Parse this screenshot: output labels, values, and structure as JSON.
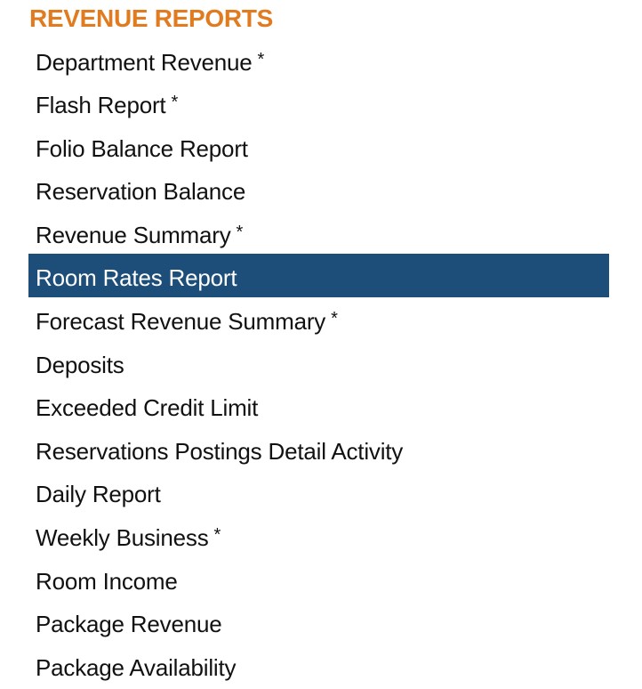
{
  "section": {
    "title": "REVENUE REPORTS",
    "title_color": "#E07B20",
    "highlight_color": "#1D4E79",
    "selected_index": 5,
    "items": [
      {
        "label": "Department Revenue",
        "marker": "*"
      },
      {
        "label": "Flash Report",
        "marker": "*"
      },
      {
        "label": "Folio Balance Report",
        "marker": ""
      },
      {
        "label": "Reservation Balance",
        "marker": ""
      },
      {
        "label": "Revenue Summary",
        "marker": "*"
      },
      {
        "label": "Room Rates Report",
        "marker": ""
      },
      {
        "label": "Forecast Revenue Summary",
        "marker": "*"
      },
      {
        "label": "Deposits",
        "marker": ""
      },
      {
        "label": "Exceeded Credit Limit",
        "marker": ""
      },
      {
        "label": "Reservations Postings Detail Activity",
        "marker": ""
      },
      {
        "label": "Daily Report",
        "marker": ""
      },
      {
        "label": "Weekly Business",
        "marker": "*"
      },
      {
        "label": "Room Income",
        "marker": ""
      },
      {
        "label": "Package Revenue",
        "marker": ""
      },
      {
        "label": "Package Availability",
        "marker": ""
      }
    ]
  }
}
